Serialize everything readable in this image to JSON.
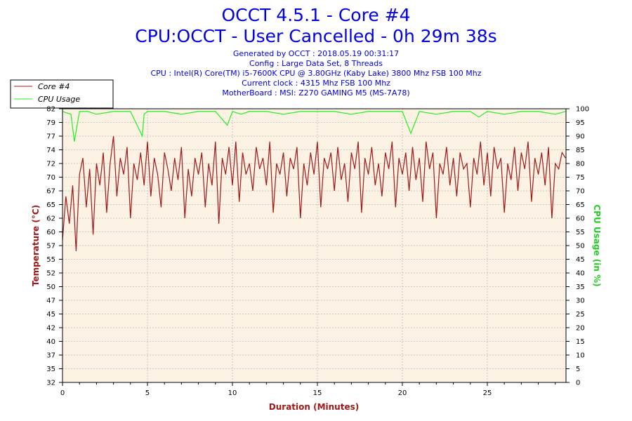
{
  "header": {
    "title": "OCCT 4.5.1 - Core #4",
    "subtitle": "CPU:OCCT - User Cancelled - 0h 29m 38s",
    "info_lines": [
      "Generated by OCCT : 2018.05.19 00:31:17",
      "Config : Large Data Set, 8 Threads",
      "CPU : Intel(R) Core(TM) i5-7600K CPU @ 3.80GHz (Kaby Lake) 3800 Mhz FSB 100 Mhz",
      "Current clock : 4315 Mhz FSB 100 Mhz",
      "MotherBoard : MSI: Z270 GAMING M5 (MS-7A78)"
    ]
  },
  "legend": {
    "items": [
      {
        "label": "Core #4",
        "color": "#a01818"
      },
      {
        "label": "CPU Usage",
        "color": "#22ee22"
      }
    ]
  },
  "chart_data": {
    "type": "line",
    "title": "OCCT 4.5.1 - Core #4",
    "xlabel": "Duration (Minutes)",
    "ylabel_left": "Temperature (°C)",
    "ylabel_right": "CPU Usage (in %)",
    "xlim": [
      0,
      29.63
    ],
    "ylim_left": [
      32,
      82
    ],
    "ylim_right": [
      0,
      100
    ],
    "x_ticks": [
      "0",
      "5",
      "10",
      "15",
      "20",
      "25"
    ],
    "x_tick_values": [
      0,
      5,
      10,
      15,
      20,
      25
    ],
    "y_left_ticks": [
      "32",
      "35",
      "37",
      "40",
      "42",
      "45",
      "47",
      "50",
      "52",
      "55",
      "57",
      "60",
      "62",
      "65",
      "67",
      "70",
      "72",
      "74",
      "77",
      "79",
      "82"
    ],
    "y_right_ticks": [
      "0",
      "5",
      "10",
      "15",
      "20",
      "25",
      "30",
      "35",
      "40",
      "45",
      "50",
      "55",
      "60",
      "65",
      "70",
      "75",
      "80",
      "85",
      "90",
      "95",
      "100"
    ],
    "grid": true,
    "legend_position": "top-left-outside",
    "series": [
      {
        "name": "Core #4",
        "axis": "left",
        "color": "#a01818",
        "x": [
          0,
          0.2,
          0.4,
          0.6,
          0.8,
          1.0,
          1.2,
          1.4,
          1.6,
          1.8,
          2.0,
          2.2,
          2.4,
          2.6,
          2.8,
          3.0,
          3.2,
          3.4,
          3.6,
          3.8,
          4.0,
          4.2,
          4.4,
          4.6,
          4.8,
          5.0,
          5.2,
          5.4,
          5.6,
          5.8,
          6.0,
          6.2,
          6.4,
          6.6,
          6.8,
          7.0,
          7.2,
          7.4,
          7.6,
          7.8,
          8.0,
          8.2,
          8.4,
          8.6,
          8.8,
          9.0,
          9.2,
          9.4,
          9.6,
          9.8,
          10.0,
          10.2,
          10.4,
          10.6,
          10.8,
          11.0,
          11.2,
          11.4,
          11.6,
          11.8,
          12.0,
          12.2,
          12.4,
          12.6,
          12.8,
          13.0,
          13.2,
          13.4,
          13.6,
          13.8,
          14.0,
          14.2,
          14.4,
          14.6,
          14.8,
          15.0,
          15.2,
          15.4,
          15.6,
          15.8,
          16.0,
          16.2,
          16.4,
          16.6,
          16.8,
          17.0,
          17.2,
          17.4,
          17.6,
          17.8,
          18.0,
          18.2,
          18.4,
          18.6,
          18.8,
          19.0,
          19.2,
          19.4,
          19.6,
          19.8,
          20.0,
          20.2,
          20.4,
          20.6,
          20.8,
          21.0,
          21.2,
          21.4,
          21.6,
          21.8,
          22.0,
          22.2,
          22.4,
          22.6,
          22.8,
          23.0,
          23.2,
          23.4,
          23.6,
          23.8,
          24.0,
          24.2,
          24.4,
          24.6,
          24.8,
          25.0,
          25.2,
          25.4,
          25.6,
          25.8,
          26.0,
          26.2,
          26.4,
          26.6,
          26.8,
          27.0,
          27.2,
          27.4,
          27.6,
          27.8,
          28.0,
          28.2,
          28.4,
          28.6,
          28.8,
          29.0,
          29.2,
          29.4,
          29.6
        ],
        "values": [
          58,
          66,
          61,
          68,
          56,
          70,
          73,
          64,
          71,
          59,
          72,
          68,
          74,
          63,
          72,
          77,
          66,
          73,
          70,
          75,
          62,
          72,
          69,
          74,
          68,
          76,
          66,
          73,
          70,
          64,
          74,
          71,
          67,
          73,
          69,
          75,
          62,
          71,
          66,
          73,
          70,
          74,
          64,
          72,
          68,
          76,
          61,
          73,
          70,
          75,
          68,
          76,
          65,
          74,
          70,
          72,
          67,
          75,
          71,
          73,
          68,
          76,
          63,
          72,
          70,
          74,
          66,
          73,
          71,
          75,
          62,
          72,
          68,
          74,
          70,
          76,
          64,
          73,
          71,
          74,
          67,
          75,
          69,
          72,
          65,
          74,
          71,
          76,
          63,
          73,
          70,
          75,
          68,
          72,
          66,
          74,
          71,
          76,
          64,
          73,
          70,
          74,
          67,
          75,
          69,
          73,
          65,
          76,
          71,
          74,
          62,
          72,
          70,
          75,
          68,
          73,
          66,
          74,
          71,
          72,
          64,
          73,
          70,
          76,
          68,
          74,
          66,
          75,
          71,
          73,
          63,
          72,
          69,
          75,
          67,
          74,
          71,
          76,
          65,
          73,
          70,
          74,
          68,
          75,
          62,
          72,
          71,
          74,
          73
        ]
      },
      {
        "name": "CPU Usage",
        "axis": "right",
        "color": "#22ee22",
        "x": [
          0,
          0.5,
          0.7,
          1.0,
          1.5,
          2.0,
          3.0,
          4.0,
          4.7,
          4.8,
          5.0,
          6.0,
          7.0,
          8.0,
          9.0,
          9.7,
          10.0,
          10.5,
          11.0,
          12.0,
          13.0,
          14.0,
          15.0,
          16.0,
          17.0,
          18.0,
          19.0,
          20.0,
          20.5,
          21.0,
          22.0,
          23.0,
          24.0,
          24.5,
          25.0,
          26.0,
          27.0,
          28.0,
          29.0,
          29.6
        ],
        "values": [
          99,
          98,
          88,
          99,
          99,
          98,
          99,
          99,
          90,
          98,
          99,
          99,
          98,
          99,
          99,
          94,
          99,
          98,
          99,
          99,
          98,
          99,
          99,
          99,
          98,
          99,
          99,
          99,
          91,
          99,
          98,
          99,
          99,
          97,
          99,
          98,
          99,
          99,
          98,
          99
        ]
      }
    ]
  }
}
